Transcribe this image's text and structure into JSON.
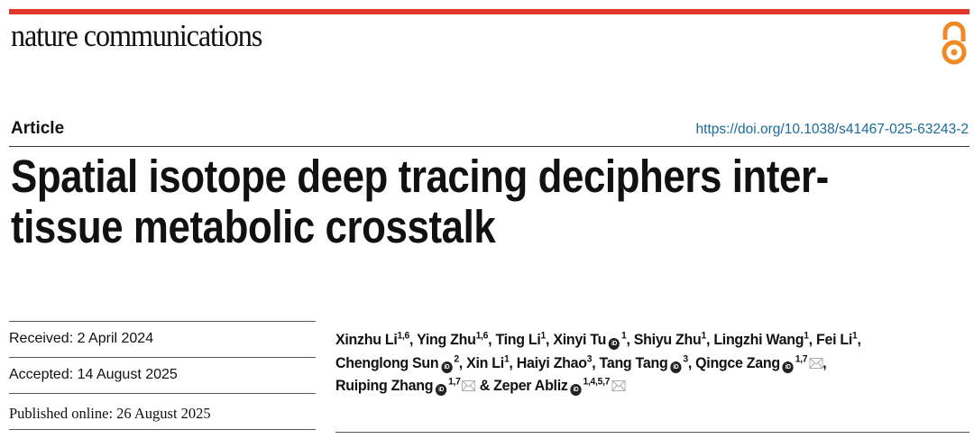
{
  "colors": {
    "brand_bar": "#e0392b",
    "open_access": "#f08a24",
    "doi_link": "#1a6a9a"
  },
  "journal": "nature communications",
  "open_access_icon": "open-access-icon",
  "article_type": "Article",
  "doi": "https://doi.org/10.1038/s41467-025-63243-2",
  "title": {
    "line1": "Spatial isotope deep tracing deciphers inter-",
    "line2": "tissue metabolic crosstalk"
  },
  "dates": {
    "received": "Received: 2 April 2024",
    "accepted": "Accepted: 14 August 2025",
    "published": "Published online: 26 August 2025"
  },
  "authors": [
    {
      "name": "Xinzhu Li",
      "orcid": false,
      "sup": "1,6",
      "email": false,
      "sep": ", "
    },
    {
      "name": "Ying Zhu",
      "orcid": false,
      "sup": "1,6",
      "email": false,
      "sep": ", "
    },
    {
      "name": "Ting Li",
      "orcid": false,
      "sup": "1",
      "email": false,
      "sep": ", "
    },
    {
      "name": "Xinyi Tu",
      "orcid": true,
      "sup": "1",
      "email": false,
      "sep": ", "
    },
    {
      "name": "Shiyu Zhu",
      "orcid": false,
      "sup": "1",
      "email": false,
      "sep": ", "
    },
    {
      "name": "Lingzhi Wang",
      "orcid": false,
      "sup": "1",
      "email": false,
      "sep": ", "
    },
    {
      "name": "Fei Li",
      "orcid": false,
      "sup": "1",
      "email": false,
      "sep": ", "
    },
    {
      "name": "Chenglong Sun",
      "orcid": true,
      "sup": "2",
      "email": false,
      "sep": ", "
    },
    {
      "name": "Xin Li",
      "orcid": false,
      "sup": "1",
      "email": false,
      "sep": ", "
    },
    {
      "name": "Haiyi Zhao",
      "orcid": false,
      "sup": "3",
      "email": false,
      "sep": ", "
    },
    {
      "name": "Tang Tang",
      "orcid": true,
      "sup": "3",
      "email": false,
      "sep": ", "
    },
    {
      "name": "Qingce Zang",
      "orcid": true,
      "sup": "1,7",
      "email": true,
      "sep": ", "
    },
    {
      "name": "Ruiping Zhang",
      "orcid": true,
      "sup": "1,7",
      "email": true,
      "sep": " & "
    },
    {
      "name": "Zeper Abliz",
      "orcid": true,
      "sup": "1,4,5,7",
      "email": true,
      "sep": ""
    }
  ]
}
